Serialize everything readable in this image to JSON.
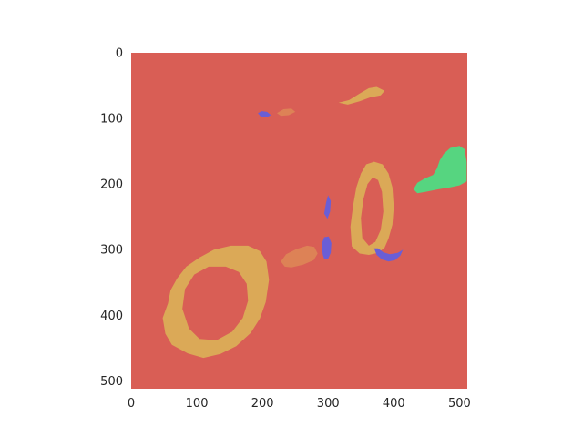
{
  "chart_data": {
    "type": "heatmap",
    "title": "",
    "xlabel": "",
    "ylabel": "",
    "xlim": [
      0,
      512
    ],
    "ylim": [
      512,
      0
    ],
    "grid": false,
    "xticks": [
      0,
      100,
      200,
      300,
      400,
      500
    ],
    "yticks": [
      0,
      100,
      200,
      300,
      400,
      500
    ],
    "colors": {
      "background": "#d95e55",
      "tan": "#dba957",
      "orange": "#dd8256",
      "blue": "#6a5ed6",
      "green": "#56d580"
    },
    "regions": [
      {
        "label": "green-region",
        "color": "green",
        "points": [
          [
            430,
            208
          ],
          [
            436,
            198
          ],
          [
            448,
            191
          ],
          [
            460,
            186
          ],
          [
            466,
            176
          ],
          [
            470,
            164
          ],
          [
            476,
            154
          ],
          [
            486,
            145
          ],
          [
            500,
            142
          ],
          [
            508,
            147
          ],
          [
            511,
            166
          ],
          [
            511,
            196
          ],
          [
            500,
            202
          ],
          [
            486,
            205
          ],
          [
            468,
            208
          ],
          [
            448,
            212
          ],
          [
            436,
            214
          ]
        ]
      },
      {
        "label": "bottom-left-loop",
        "color": "tan",
        "points": [
          [
            56,
            382
          ],
          [
            48,
            404
          ],
          [
            52,
            428
          ],
          [
            62,
            445
          ],
          [
            86,
            458
          ],
          [
            110,
            465
          ],
          [
            136,
            459
          ],
          [
            160,
            447
          ],
          [
            182,
            427
          ],
          [
            196,
            405
          ],
          [
            205,
            380
          ],
          [
            210,
            346
          ],
          [
            206,
            318
          ],
          [
            196,
            302
          ],
          [
            178,
            294
          ],
          [
            152,
            294
          ],
          [
            126,
            300
          ],
          [
            104,
            312
          ],
          [
            84,
            326
          ],
          [
            70,
            344
          ],
          [
            60,
            362
          ]
        ]
      },
      {
        "label": "right-loop",
        "color": "tan",
        "points": [
          [
            336,
            295
          ],
          [
            334,
            265
          ],
          [
            338,
            233
          ],
          [
            343,
            205
          ],
          [
            350,
            184
          ],
          [
            358,
            170
          ],
          [
            370,
            166
          ],
          [
            383,
            170
          ],
          [
            392,
            184
          ],
          [
            398,
            205
          ],
          [
            400,
            235
          ],
          [
            398,
            262
          ],
          [
            392,
            283
          ],
          [
            386,
            297
          ],
          [
            376,
            305
          ],
          [
            362,
            308
          ],
          [
            348,
            306
          ]
        ]
      },
      {
        "label": "mid-patch",
        "color": "orange",
        "points": [
          [
            228,
            318
          ],
          [
            236,
            307
          ],
          [
            252,
            299
          ],
          [
            268,
            294
          ],
          [
            279,
            296
          ],
          [
            284,
            306
          ],
          [
            278,
            316
          ],
          [
            262,
            323
          ],
          [
            244,
            327
          ],
          [
            234,
            326
          ]
        ]
      },
      {
        "label": "blue-bottom",
        "color": "blue",
        "points": [
          [
            370,
            298
          ],
          [
            374,
            308
          ],
          [
            382,
            315
          ],
          [
            392,
            318
          ],
          [
            402,
            316
          ],
          [
            410,
            309
          ],
          [
            414,
            300
          ],
          [
            406,
            305
          ],
          [
            394,
            307
          ],
          [
            384,
            304
          ],
          [
            376,
            298
          ]
        ]
      },
      {
        "label": "blue-left-blob",
        "color": "blue",
        "points": [
          [
            292,
            308
          ],
          [
            290,
            292
          ],
          [
            294,
            281
          ],
          [
            301,
            280
          ],
          [
            305,
            290
          ],
          [
            304,
            305
          ],
          [
            300,
            314
          ],
          [
            294,
            314
          ]
        ]
      },
      {
        "label": "blue-streak",
        "color": "blue",
        "points": [
          [
            294,
            245
          ],
          [
            297,
            228
          ],
          [
            300,
            217
          ],
          [
            304,
            226
          ],
          [
            303,
            242
          ],
          [
            299,
            253
          ]
        ]
      },
      {
        "label": "blue-top",
        "color": "blue",
        "points": [
          [
            193,
            92
          ],
          [
            199,
            89
          ],
          [
            207,
            90
          ],
          [
            213,
            95
          ],
          [
            207,
            98
          ],
          [
            197,
            97
          ]
        ]
      },
      {
        "label": "top-speck",
        "color": "orange",
        "points": [
          [
            222,
            92
          ],
          [
            232,
            86
          ],
          [
            244,
            85
          ],
          [
            250,
            90
          ],
          [
            240,
            95
          ],
          [
            228,
            96
          ]
        ]
      },
      {
        "label": "top-wisp",
        "color": "tan",
        "points": [
          [
            316,
            76
          ],
          [
            332,
            72
          ],
          [
            348,
            62
          ],
          [
            362,
            54
          ],
          [
            374,
            52
          ],
          [
            386,
            58
          ],
          [
            380,
            65
          ],
          [
            364,
            68
          ],
          [
            348,
            74
          ],
          [
            330,
            79
          ]
        ]
      }
    ],
    "holes": [
      {
        "label": "loop-hole",
        "region": "bottom-left-loop",
        "points": [
          [
            78,
            390
          ],
          [
            82,
            360
          ],
          [
            96,
            338
          ],
          [
            118,
            326
          ],
          [
            144,
            326
          ],
          [
            164,
            334
          ],
          [
            176,
            352
          ],
          [
            178,
            378
          ],
          [
            170,
            404
          ],
          [
            154,
            425
          ],
          [
            130,
            438
          ],
          [
            104,
            436
          ],
          [
            88,
            420
          ]
        ]
      },
      {
        "label": "right-loop-hole",
        "region": "right-loop",
        "points": [
          [
            352,
            282
          ],
          [
            350,
            252
          ],
          [
            354,
            222
          ],
          [
            360,
            200
          ],
          [
            368,
            190
          ],
          [
            376,
            194
          ],
          [
            382,
            212
          ],
          [
            384,
            242
          ],
          [
            380,
            270
          ],
          [
            372,
            288
          ],
          [
            362,
            294
          ]
        ]
      }
    ]
  }
}
